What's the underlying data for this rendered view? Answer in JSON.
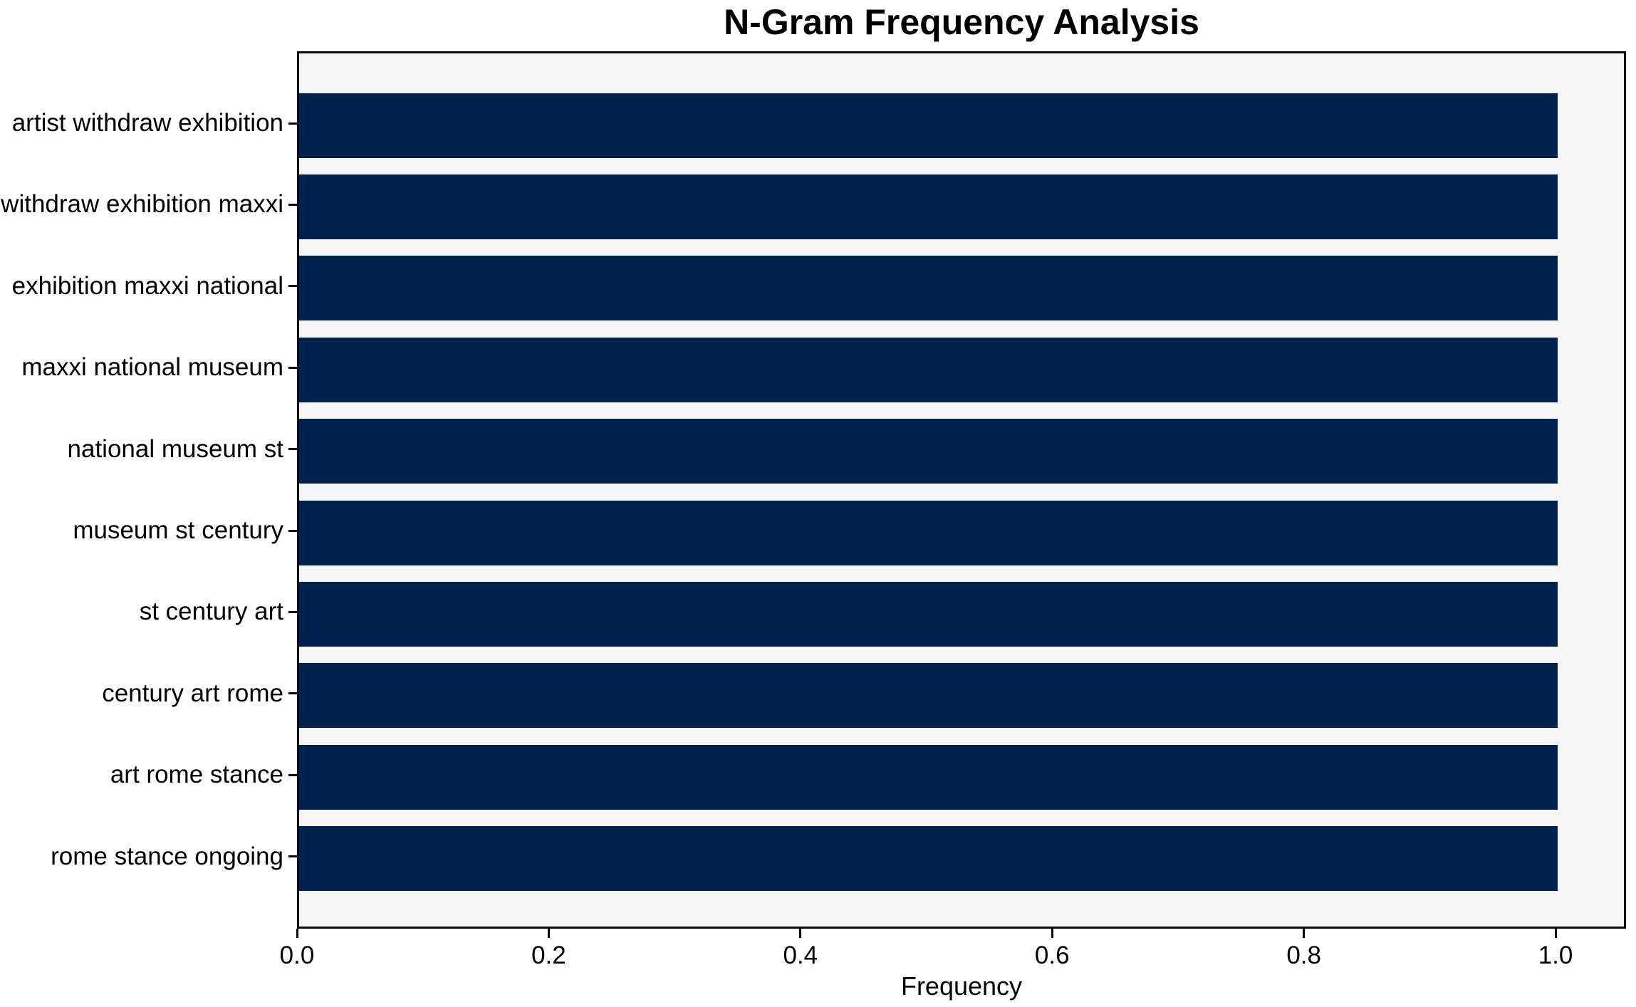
{
  "chart_data": {
    "type": "bar",
    "orientation": "horizontal",
    "title": "N-Gram Frequency Analysis",
    "xlabel": "Frequency",
    "ylabel": "",
    "categories": [
      "artist withdraw exhibition",
      "withdraw exhibition maxxi",
      "exhibition maxxi national",
      "maxxi national museum",
      "national museum st",
      "museum st century",
      "st century art",
      "century art rome",
      "art rome stance",
      "rome stance ongoing"
    ],
    "values": [
      1.0,
      1.0,
      1.0,
      1.0,
      1.0,
      1.0,
      1.0,
      1.0,
      1.0,
      1.0
    ],
    "xticks": [
      0.0,
      0.2,
      0.4,
      0.6,
      0.8,
      1.0
    ],
    "xtick_labels": [
      "0.0",
      "0.2",
      "0.4",
      "0.6",
      "0.8",
      "1.0"
    ],
    "xlim": [
      0,
      1.0526
    ],
    "grid": false,
    "legend_position": "none",
    "colors": {
      "bar": "#00234e",
      "plot_background": "#f6f6f6",
      "figure_background": "#ffffff",
      "spine": "#0a0a0a",
      "text": "#000000"
    }
  }
}
